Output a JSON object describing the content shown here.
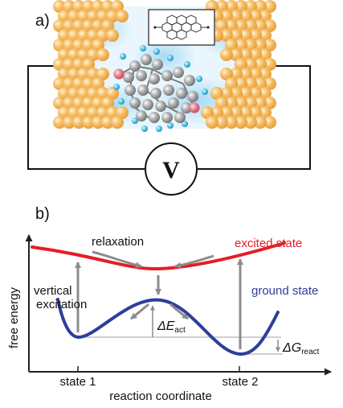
{
  "panel_a": {
    "label": "a)",
    "voltmeter_symbol": "V"
  },
  "panel_b": {
    "label": "b)",
    "y_axis_label": "free energy",
    "x_axis_label": "reaction coordinate",
    "x_ticks": [
      "state 1",
      "state 2"
    ],
    "relaxation_label": "relaxation",
    "vertical_excitation_line1": "vertical",
    "vertical_excitation_line2": "excitation",
    "excited_state_label": "excited state",
    "ground_state_label": "ground state",
    "delta_e_symbol": "ΔE",
    "delta_e_subscript": "act",
    "delta_g_symbol": "ΔG",
    "delta_g_subscript": "react"
  },
  "colors": {
    "excited_state": "#e41e26",
    "ground_state": "#2d3e9b",
    "arrows": "#8c8c8c",
    "electrodes": "#f5b45a",
    "carbon_atoms": "#9b9b9b",
    "hydrogen_atoms": "#47b6e2",
    "oxygen_atoms": "#e07a8a"
  }
}
